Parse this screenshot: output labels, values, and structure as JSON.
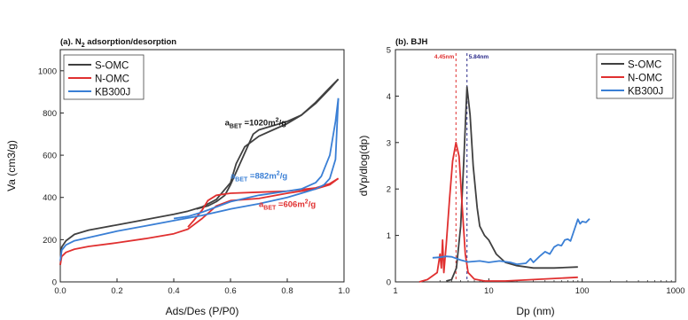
{
  "chart_data": [
    {
      "type": "line",
      "panel_label_prefix": "(a). N",
      "panel_label_sub": "2",
      "panel_label_suffix": " adsorption/desorption",
      "xlabel": "Ads/Des (P/P0)",
      "ylabel": "Va (cm3/g)",
      "xlim": [
        0,
        1.0
      ],
      "ylim": [
        0,
        1100
      ],
      "x_ticks": [
        "0.0",
        "0.2",
        "0.4",
        "0.6",
        "0.8",
        "1.0"
      ],
      "y_ticks": [
        "0",
        "200",
        "400",
        "600",
        "800",
        "1000"
      ],
      "legend_position": "top-left",
      "series": [
        {
          "name": "S-OMC",
          "color": "#404040",
          "adsorption": {
            "x": [
              0.0,
              0.005,
              0.02,
              0.05,
              0.1,
              0.2,
              0.3,
              0.4,
              0.45,
              0.5,
              0.55,
              0.6,
              0.62,
              0.65,
              0.7,
              0.75,
              0.8,
              0.85,
              0.9,
              0.95,
              0.98
            ],
            "y": [
              80,
              165,
              195,
              225,
              245,
              270,
              295,
              320,
              335,
              355,
              390,
              470,
              560,
              640,
              690,
              720,
              750,
              790,
              850,
              920,
              960
            ]
          },
          "desorption": {
            "x": [
              0.98,
              0.95,
              0.9,
              0.85,
              0.8,
              0.75,
              0.7,
              0.68,
              0.65,
              0.6,
              0.58,
              0.55,
              0.52,
              0.48
            ],
            "y": [
              960,
              915,
              845,
              790,
              760,
              740,
              720,
              700,
              610,
              460,
              410,
              380,
              360,
              345
            ]
          }
        },
        {
          "name": "N-OMC",
          "color": "#e03030",
          "adsorption": {
            "x": [
              0.0,
              0.005,
              0.02,
              0.05,
              0.1,
              0.2,
              0.3,
              0.4,
              0.45,
              0.5,
              0.55,
              0.6,
              0.7,
              0.8,
              0.9,
              0.95,
              0.98
            ],
            "y": [
              80,
              120,
              140,
              155,
              168,
              185,
              205,
              228,
              250,
              300,
              360,
              385,
              395,
              420,
              440,
              460,
              490
            ]
          },
          "desorption": {
            "x": [
              0.98,
              0.95,
              0.9,
              0.8,
              0.7,
              0.6,
              0.55,
              0.52,
              0.5,
              0.47,
              0.45
            ],
            "y": [
              490,
              465,
              445,
              430,
              425,
              420,
              410,
              385,
              340,
              290,
              260
            ]
          }
        },
        {
          "name": "KB300J",
          "color": "#3a7fd5",
          "adsorption": {
            "x": [
              0.0,
              0.005,
              0.02,
              0.05,
              0.1,
              0.2,
              0.3,
              0.4,
              0.5,
              0.6,
              0.7,
              0.8,
              0.85,
              0.9,
              0.93,
              0.95,
              0.97,
              0.98
            ],
            "y": [
              100,
              150,
              175,
              195,
              210,
              240,
              265,
              290,
              315,
              345,
              370,
              400,
              420,
              440,
              460,
              490,
              580,
              870
            ]
          },
          "desorption": {
            "x": [
              0.98,
              0.97,
              0.95,
              0.92,
              0.9,
              0.85,
              0.8,
              0.7,
              0.6,
              0.5,
              0.45,
              0.4
            ],
            "y": [
              870,
              760,
              600,
              500,
              470,
              440,
              430,
              410,
              380,
              330,
              310,
              300
            ]
          }
        }
      ],
      "annotations": [
        {
          "main": "a",
          "sub": "BET",
          "value": " =1020m",
          "sup": "2",
          "unit": "/g",
          "color": "#1a1a1a",
          "anchor_x": 0.58,
          "anchor_y": 740
        },
        {
          "main": "a",
          "sub": "BET",
          "value": " =882m",
          "sup": "2",
          "unit": "/g",
          "color": "#3a7fd5",
          "anchor_x": 0.6,
          "anchor_y": 490
        },
        {
          "main": "a",
          "sub": "BET",
          "value": " =606m",
          "sup": "2",
          "unit": "/g",
          "color": "#e03030",
          "anchor_x": 0.7,
          "anchor_y": 355
        }
      ]
    },
    {
      "type": "line",
      "panel_label": "(b). BJH",
      "xlabel": "Dp (nm)",
      "ylabel": "dVp/dlog(dp)",
      "x_scale": "log",
      "xlim": [
        1,
        1000
      ],
      "ylim": [
        0,
        5
      ],
      "x_ticks": [
        "1",
        "10",
        "100",
        "1000"
      ],
      "y_ticks": [
        "0",
        "1",
        "2",
        "3",
        "4",
        "5"
      ],
      "legend_position": "top-right",
      "series": [
        {
          "name": "S-OMC",
          "color": "#404040",
          "x": [
            3.5,
            4.0,
            4.5,
            5.0,
            5.4,
            5.84,
            6.3,
            6.8,
            7.5,
            8.0,
            9.0,
            10,
            12,
            15,
            20,
            30,
            50,
            90
          ],
          "y": [
            0.02,
            0.05,
            0.3,
            1.2,
            2.6,
            4.2,
            3.6,
            2.5,
            1.6,
            1.2,
            1.0,
            0.9,
            0.6,
            0.42,
            0.35,
            0.3,
            0.3,
            0.32
          ]
        },
        {
          "name": "N-OMC",
          "color": "#e03030",
          "x": [
            1.8,
            2.2,
            2.8,
            3.0,
            3.1,
            3.2,
            3.3,
            3.5,
            3.8,
            4.1,
            4.45,
            4.8,
            5.2,
            5.6,
            6.0,
            7.0,
            9.0,
            15,
            30,
            90
          ],
          "y": [
            0.0,
            0.05,
            0.2,
            0.6,
            0.3,
            0.9,
            0.2,
            0.8,
            1.8,
            2.6,
            3.0,
            2.7,
            1.6,
            0.6,
            0.2,
            0.06,
            0.02,
            0.02,
            0.05,
            0.1
          ]
        },
        {
          "name": "KB300J",
          "color": "#3a7fd5",
          "x": [
            2.5,
            3.0,
            3.5,
            4.0,
            5.0,
            6.0,
            8.0,
            10,
            13,
            17,
            20,
            25,
            28,
            30,
            35,
            40,
            45,
            50,
            55,
            60,
            65,
            70,
            75,
            80,
            85,
            90,
            95,
            100,
            110,
            120
          ],
          "y": [
            0.52,
            0.53,
            0.55,
            0.54,
            0.47,
            0.43,
            0.45,
            0.42,
            0.45,
            0.42,
            0.38,
            0.4,
            0.5,
            0.42,
            0.55,
            0.65,
            0.6,
            0.75,
            0.8,
            0.78,
            0.9,
            0.92,
            0.88,
            1.05,
            1.2,
            1.35,
            1.25,
            1.3,
            1.28,
            1.36
          ]
        }
      ],
      "reference_lines": [
        {
          "label": "4.45nm",
          "x": 4.45,
          "color": "#e03030"
        },
        {
          "label": "5.84nm",
          "x": 5.84,
          "color": "#2a2a8a"
        }
      ]
    }
  ]
}
